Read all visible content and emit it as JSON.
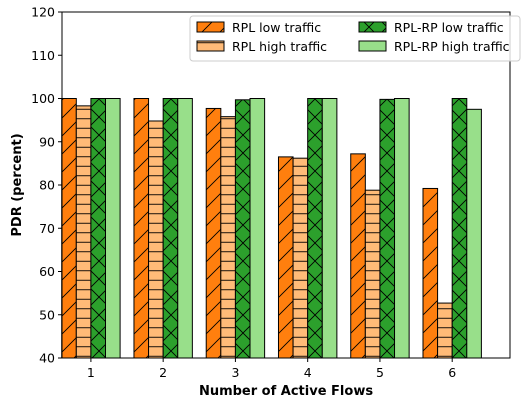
{
  "chart_data": {
    "type": "bar",
    "title": "",
    "xlabel": "Number of Active Flows",
    "ylabel": "PDR (percent)",
    "categories": [
      "1",
      "2",
      "3",
      "4",
      "5",
      "6"
    ],
    "ylim": [
      40,
      120
    ],
    "yticks": [
      40,
      50,
      60,
      70,
      80,
      90,
      100,
      110,
      120
    ],
    "grid": false,
    "legend": "top-right",
    "series": [
      {
        "name": "RPL low traffic",
        "color": "#ff7f0e",
        "hatch": "diagonal",
        "values": [
          100,
          100,
          97.7,
          86.5,
          87.2,
          79.2
        ]
      },
      {
        "name": "RPL high traffic",
        "color": "#ffbb78",
        "hatch": "horizontal",
        "values": [
          98.3,
          94.8,
          95.8,
          86.2,
          78.8,
          52.7
        ]
      },
      {
        "name": "RPL-RP low traffic",
        "color": "#2ca02c",
        "hatch": "cross",
        "values": [
          100,
          100,
          99.7,
          100,
          99.8,
          100
        ]
      },
      {
        "name": "RPL-RP high traffic",
        "color": "#98df8a",
        "hatch": "none",
        "values": [
          100,
          100,
          100,
          100,
          100,
          97.5
        ]
      }
    ]
  }
}
